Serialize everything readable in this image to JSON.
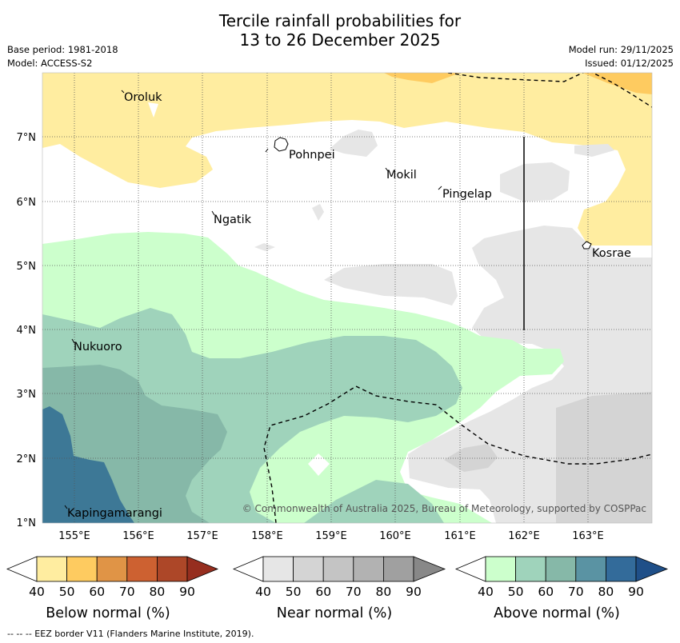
{
  "title": {
    "line1": "Tercile rainfall probabilities for",
    "line2": "13 to 26 December 2025"
  },
  "meta": {
    "base_period": "Base period: 1981-2018",
    "model": "Model: ACCESS-S2",
    "model_run": "Model run: 29/11/2025",
    "issued": "Issued: 01/12/2025"
  },
  "places": {
    "oroluk": "Oroluk",
    "pohnpei": "Pohnpei",
    "mokil": "Mokil",
    "pingelap": "Pingelap",
    "ngatik": "Ngatik",
    "kosrae": "Kosrae",
    "nukuoro": "Nukuoro",
    "kapingamarangi": "Kapingamarangi"
  },
  "axes": {
    "lat_ticks": [
      "7°N",
      "6°N",
      "5°N",
      "4°N",
      "3°N",
      "2°N",
      "1°N"
    ],
    "lon_ticks": [
      "155°E",
      "156°E",
      "157°E",
      "158°E",
      "159°E",
      "160°E",
      "161°E",
      "162°E",
      "163°E"
    ]
  },
  "copyright": "© Commonwealth of Australia 2025, Bureau of Meteorology, supported by COSPPac",
  "colorbars": {
    "below": {
      "title": "Below normal (%)",
      "ticks": [
        "40",
        "50",
        "60",
        "70",
        "80",
        "90"
      ],
      "colors": [
        "#ffffff",
        "#ffeda0",
        "#fecb60",
        "#e09446",
        "#cd6131",
        "#ad4728",
        "#962e1f"
      ]
    },
    "near": {
      "title": "Near normal (%)",
      "ticks": [
        "40",
        "50",
        "60",
        "70",
        "80",
        "90"
      ],
      "colors": [
        "#ffffff",
        "#e6e6e6",
        "#d4d4d4",
        "#c4c4c4",
        "#b2b2b2",
        "#a0a0a0",
        "#888888"
      ]
    },
    "above": {
      "title": "Above normal (%)",
      "ticks": [
        "40",
        "50",
        "60",
        "70",
        "80",
        "90"
      ],
      "colors": [
        "#ffffff",
        "#ccffcc",
        "#9fd3bb",
        "#86b8a8",
        "#5a93a3",
        "#336b9a",
        "#1f4f88"
      ]
    }
  },
  "footer": "--  --  -- EEZ border V11 (Flanders Marine Institute, 2019)."
}
